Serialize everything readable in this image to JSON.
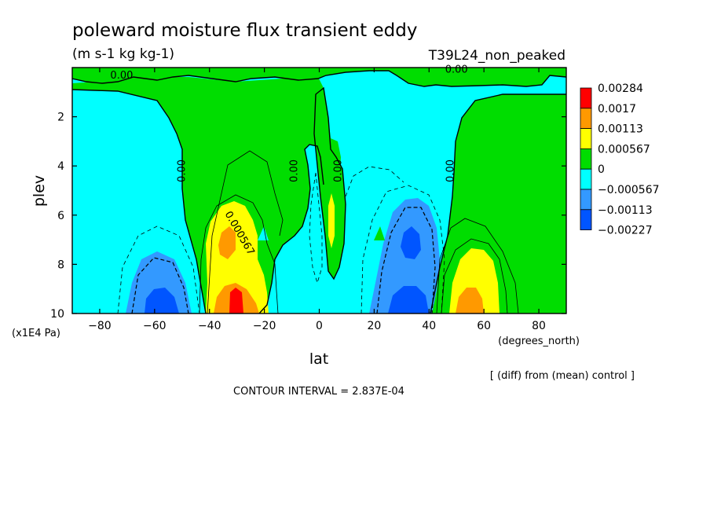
{
  "chart_data": {
    "type": "heatmap",
    "title": "poleward moisture flux transient eddy",
    "units": "(m s-1 kg kg-1)",
    "experiment": "T39L24_non_peaked",
    "xlabel": "lat",
    "x_units": "(degrees_north)",
    "ylabel": "plev",
    "y_units": "(x1E4 Pa)",
    "xlim": [
      -90,
      90
    ],
    "ylim": [
      10,
      0
    ],
    "x_ticks": [
      "-80",
      "-60",
      "-40",
      "-20",
      "0",
      "20",
      "40",
      "60",
      "80"
    ],
    "x_tick_values": [
      -80,
      -60,
      -40,
      -20,
      0,
      20,
      40,
      60,
      80
    ],
    "y_ticks": [
      "2",
      "4",
      "6",
      "8",
      "10"
    ],
    "y_tick_values": [
      2,
      4,
      6,
      8,
      10
    ],
    "colorbar": {
      "labels": [
        "0.00284",
        "0.0017",
        "0.00113",
        "0.000567",
        "0",
        "−0.000567",
        "−0.00113",
        "−0.00227"
      ],
      "colors": [
        "#ff0000",
        "#ff9900",
        "#ffff00",
        "#00dd00",
        "#00ffff",
        "#3399ff",
        "#0055ff"
      ]
    },
    "contour_labels": [
      {
        "text": "0.00",
        "lat": -72,
        "plev": 0.45
      },
      {
        "text": "0.00",
        "lat": 50,
        "plev": 0.2
      },
      {
        "text": "0.00",
        "lat": -49,
        "plev": 4.2
      },
      {
        "text": "0.00",
        "lat": -8,
        "plev": 4.2
      },
      {
        "text": "0.00",
        "lat": 8,
        "plev": 4.2
      },
      {
        "text": "0.00",
        "lat": 49,
        "plev": 4.2
      },
      {
        "text": "0.000567",
        "lat": -30,
        "plev": 6.8
      }
    ],
    "contour_interval": "CONTOUR INTERVAL = 2.837E-04",
    "diff_note": "[ (diff) from (mean) control ]",
    "grid": false,
    "legend_position": "right"
  }
}
